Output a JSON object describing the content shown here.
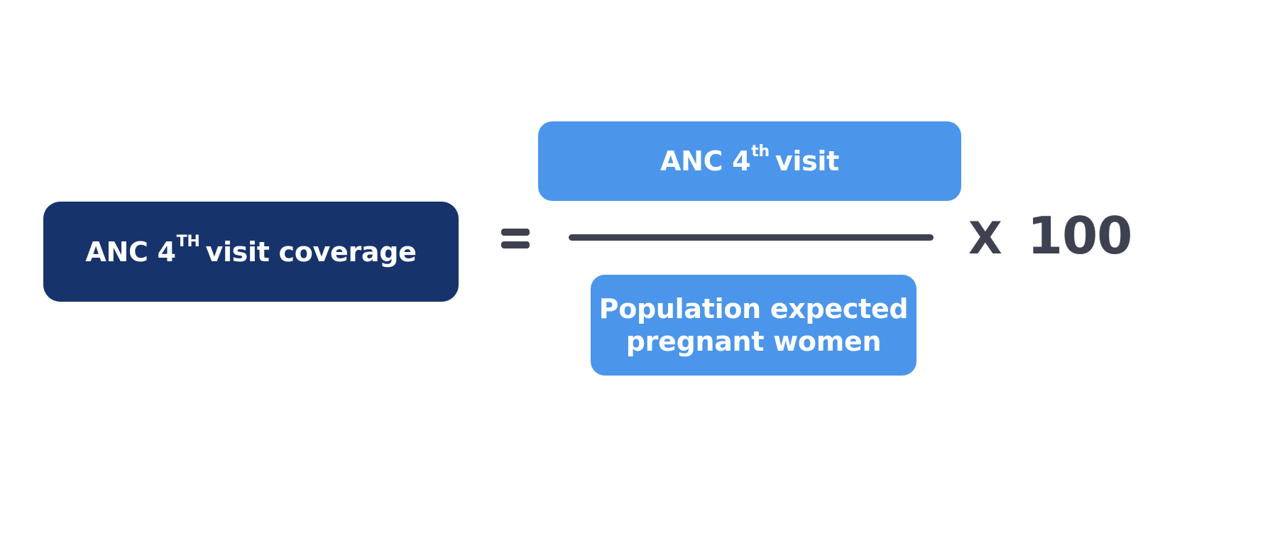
{
  "formula": {
    "result": {
      "prefix": "ANC 4",
      "superscript": "TH",
      "suffix": "visit coverage"
    },
    "operator": "=",
    "numerator": {
      "prefix": "ANC 4",
      "superscript": "th",
      "suffix": "visit"
    },
    "denominator": {
      "line1": "Population expected",
      "line2": "pregnant women"
    },
    "times": "X",
    "multiplier": "100"
  },
  "colors": {
    "result_box": "#17336c",
    "fraction_boxes": "#4b96ea",
    "operators": "#3d4150",
    "box_text": "#ffffff"
  }
}
